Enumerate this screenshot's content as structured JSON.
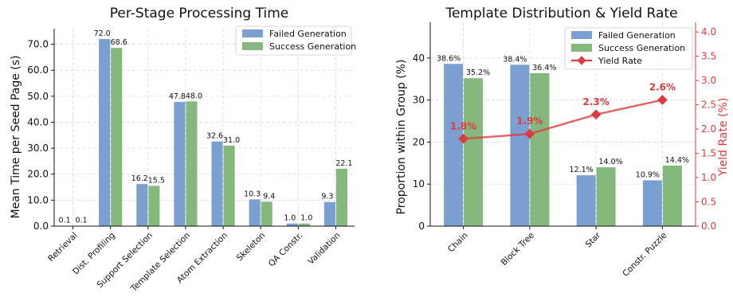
{
  "chart_data": [
    {
      "type": "bar",
      "title": "Per-Stage Processing Time",
      "xlabel": "",
      "ylabel": "Mean Time per Seed Page (s)",
      "ylim": [
        0,
        76
      ],
      "yticks": [
        "0.0",
        "10.0",
        "20.0",
        "30.0",
        "40.0",
        "50.0",
        "60.0",
        "70.0"
      ],
      "grid": true,
      "legend_position": "top-right",
      "categories": [
        "Retrieval",
        "Dist. Profiling",
        "Support Selection",
        "Template Selection",
        "Atom Extraction",
        "Skeleton",
        "QA Constr.",
        "Validation"
      ],
      "series": [
        {
          "name": "Failed Generation",
          "color": "#7b9fd0",
          "values": [
            0.1,
            72.0,
            16.2,
            47.8,
            32.6,
            10.3,
            1.0,
            9.3
          ],
          "labels": [
            "0.1",
            "72.0",
            "16.2",
            "47.8",
            "32.6",
            "10.3",
            "1.0",
            "9.3"
          ]
        },
        {
          "name": "Success Generation",
          "color": "#85b87d",
          "values": [
            0.1,
            68.6,
            15.5,
            48.0,
            31.0,
            9.4,
            1.0,
            22.1
          ],
          "labels": [
            "0.1",
            "68.6",
            "15.5",
            "48.0",
            "31.0",
            "9.4",
            "1.0",
            "22.1"
          ]
        }
      ]
    },
    {
      "type": "bar",
      "title": "Template Distribution & Yield Rate",
      "xlabel": "",
      "ylabel": "Proportion within Group (%)",
      "ylim": [
        0,
        48.5
      ],
      "yticks": [
        "0",
        "10",
        "20",
        "30",
        "40"
      ],
      "y2label": "Yield Rate (%)",
      "y2lim": [
        0,
        4.2
      ],
      "y2ticks": [
        "0.0",
        "0.5",
        "1.0",
        "1.5",
        "2.0",
        "2.5",
        "3.0",
        "3.5",
        "4.0"
      ],
      "grid": true,
      "legend_position": "top-right",
      "categories": [
        "Chain",
        "Block Tree",
        "Star",
        "Constr. Puzzle"
      ],
      "series": [
        {
          "name": "Failed Generation",
          "color": "#7b9fd0",
          "values": [
            38.6,
            38.4,
            12.1,
            10.9
          ],
          "labels": [
            "38.6%",
            "38.4%",
            "12.1%",
            "10.9%"
          ]
        },
        {
          "name": "Success Generation",
          "color": "#85b87d",
          "values": [
            35.2,
            36.4,
            14.0,
            14.4
          ],
          "labels": [
            "35.2%",
            "36.4%",
            "14.0%",
            "14.4%"
          ]
        }
      ],
      "line_series": {
        "name": "Yield Rate",
        "color": "#e0393e",
        "values": [
          1.8,
          1.9,
          2.3,
          2.6
        ],
        "labels": [
          "1.8%",
          "1.9%",
          "2.3%",
          "2.6%"
        ]
      }
    }
  ]
}
